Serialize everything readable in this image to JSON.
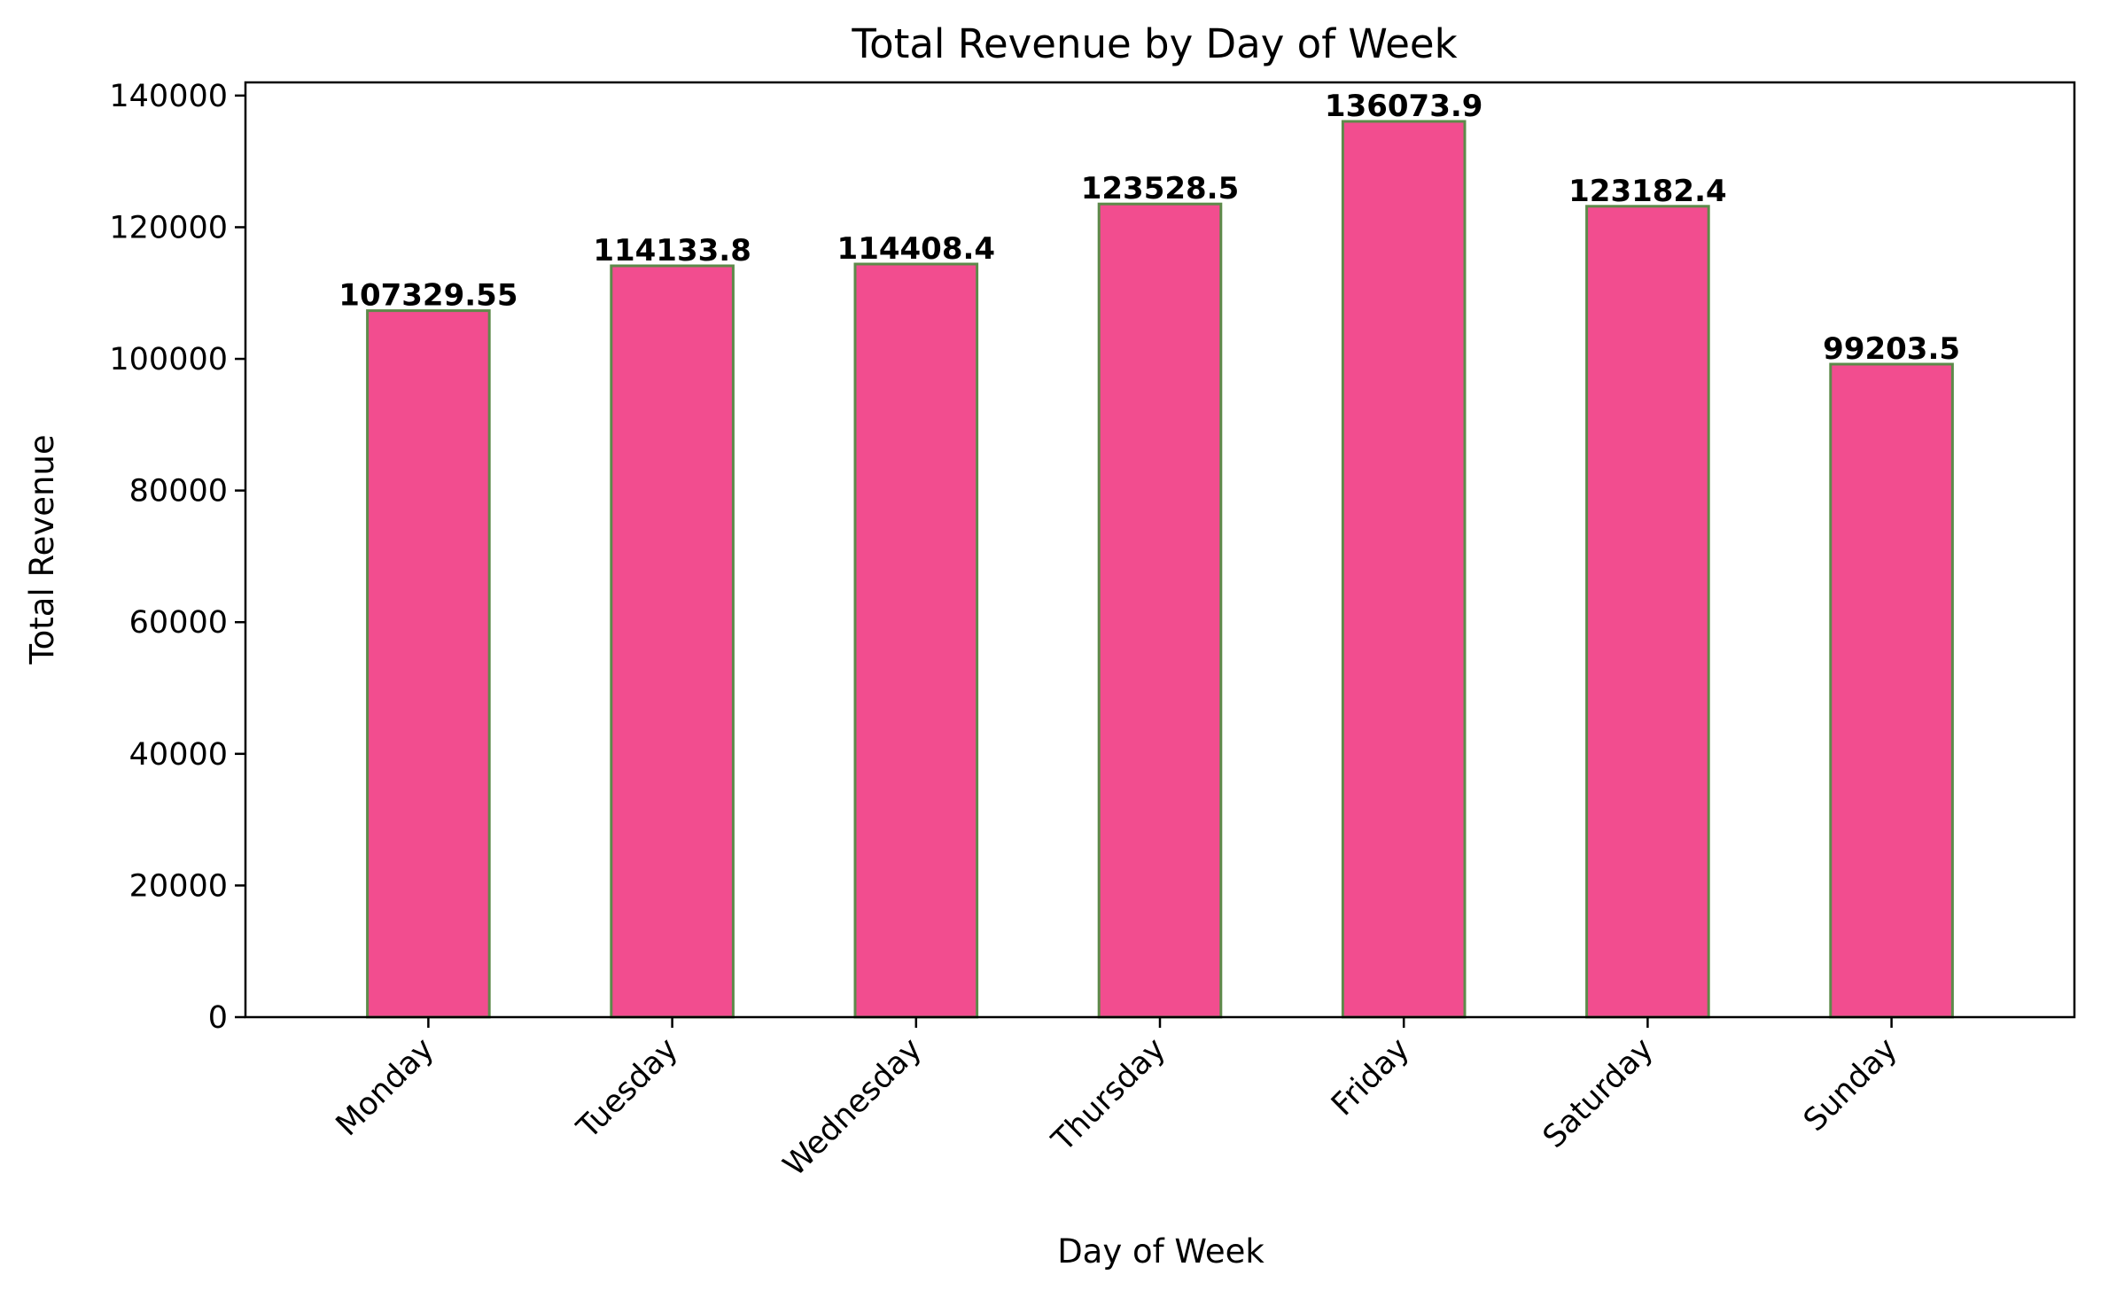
{
  "chart_data": {
    "type": "bar",
    "title": "Total Revenue by Day of Week",
    "xlabel": "Day of Week",
    "ylabel": "Total Revenue",
    "categories": [
      "Monday",
      "Tuesday",
      "Wednesday",
      "Thursday",
      "Friday",
      "Saturday",
      "Sunday"
    ],
    "values": [
      107329.55,
      114133.8,
      114408.4,
      123528.5,
      136073.9,
      123182.4,
      99203.5
    ],
    "value_labels": [
      "107329.55",
      "114133.8",
      "114408.4",
      "123528.5",
      "136073.9",
      "123182.4",
      "99203.5"
    ],
    "ylim": [
      0,
      142000
    ],
    "yticks": [
      0,
      20000,
      40000,
      60000,
      80000,
      100000,
      120000,
      140000
    ],
    "ytick_labels": [
      "0",
      "20000",
      "40000",
      "60000",
      "80000",
      "100000",
      "120000",
      "140000"
    ],
    "grid": false,
    "legend": "none",
    "colors": {
      "bar_fill": "#f24d8f",
      "bar_edge": "#5d8a4a",
      "axis": "#000000"
    }
  }
}
